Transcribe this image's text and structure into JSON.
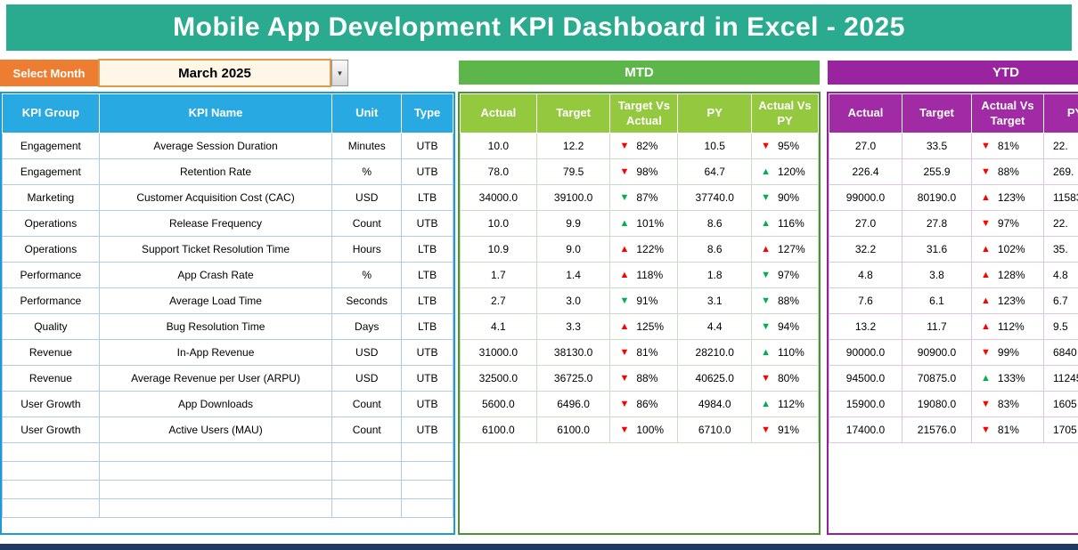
{
  "title": "Mobile App Development KPI Dashboard in Excel - 2025",
  "month_selector": {
    "label": "Select Month",
    "value": "March 2025"
  },
  "icons": {
    "dropdown_arrow": "▼",
    "trend_up": "▲",
    "trend_down": "▼"
  },
  "sections": {
    "mtd": "MTD",
    "ytd": "YTD"
  },
  "columns": {
    "left": [
      "KPI Group",
      "KPI Name",
      "Unit",
      "Type"
    ],
    "mtd": [
      "Actual",
      "Target",
      "Target Vs Actual",
      "PY",
      "Actual Vs PY"
    ],
    "ytd": [
      "Actual",
      "Target",
      "Actual Vs Target",
      "PY"
    ]
  },
  "colors": {
    "banner": "#2aab8f",
    "orange": "#ED7D31",
    "blue_header": "#29A9E1",
    "mtd_bar": "#5CB649",
    "mtd_subheader": "#94C83F",
    "ytd_bar": "#9A23A0",
    "ytd_subheader": "#A12BA5",
    "trend_good": "#00B050",
    "trend_bad": "#FF0000",
    "footer": "#1F3864"
  },
  "rows": [
    {
      "group": "Engagement",
      "name": "Average Session Duration",
      "unit": "Minutes",
      "type": "UTB",
      "mtd": {
        "actual": "10.0",
        "target": "12.2",
        "tva": {
          "arrow": "down",
          "good": false,
          "pct": "82%"
        },
        "py": "10.5",
        "avp": {
          "arrow": "down",
          "good": false,
          "pct": "95%"
        }
      },
      "ytd": {
        "actual": "27.0",
        "target": "33.5",
        "avt": {
          "arrow": "down",
          "good": false,
          "pct": "81%"
        },
        "py": "22."
      }
    },
    {
      "group": "Engagement",
      "name": "Retention Rate",
      "unit": "%",
      "type": "UTB",
      "mtd": {
        "actual": "78.0",
        "target": "79.5",
        "tva": {
          "arrow": "down",
          "good": false,
          "pct": "98%"
        },
        "py": "64.7",
        "avp": {
          "arrow": "up",
          "good": true,
          "pct": "120%"
        }
      },
      "ytd": {
        "actual": "226.4",
        "target": "255.9",
        "avt": {
          "arrow": "down",
          "good": false,
          "pct": "88%"
        },
        "py": "269."
      }
    },
    {
      "group": "Marketing",
      "name": "Customer Acquisition Cost (CAC)",
      "unit": "USD",
      "type": "LTB",
      "mtd": {
        "actual": "34000.0",
        "target": "39100.0",
        "tva": {
          "arrow": "down",
          "good": true,
          "pct": "87%"
        },
        "py": "37740.0",
        "avp": {
          "arrow": "down",
          "good": true,
          "pct": "90%"
        }
      },
      "ytd": {
        "actual": "99000.0",
        "target": "80190.0",
        "avt": {
          "arrow": "up",
          "good": false,
          "pct": "123%"
        },
        "py": "11583"
      }
    },
    {
      "group": "Operations",
      "name": "Release Frequency",
      "unit": "Count",
      "type": "UTB",
      "mtd": {
        "actual": "10.0",
        "target": "9.9",
        "tva": {
          "arrow": "up",
          "good": true,
          "pct": "101%"
        },
        "py": "8.6",
        "avp": {
          "arrow": "up",
          "good": true,
          "pct": "116%"
        }
      },
      "ytd": {
        "actual": "27.0",
        "target": "27.8",
        "avt": {
          "arrow": "down",
          "good": false,
          "pct": "97%"
        },
        "py": "22."
      }
    },
    {
      "group": "Operations",
      "name": "Support Ticket Resolution Time",
      "unit": "Hours",
      "type": "LTB",
      "mtd": {
        "actual": "10.9",
        "target": "9.0",
        "tva": {
          "arrow": "up",
          "good": false,
          "pct": "122%"
        },
        "py": "8.6",
        "avp": {
          "arrow": "up",
          "good": false,
          "pct": "127%"
        }
      },
      "ytd": {
        "actual": "32.2",
        "target": "31.6",
        "avt": {
          "arrow": "up",
          "good": false,
          "pct": "102%"
        },
        "py": "35."
      }
    },
    {
      "group": "Performance",
      "name": "App Crash Rate",
      "unit": "%",
      "type": "LTB",
      "mtd": {
        "actual": "1.7",
        "target": "1.4",
        "tva": {
          "arrow": "up",
          "good": false,
          "pct": "118%"
        },
        "py": "1.8",
        "avp": {
          "arrow": "down",
          "good": true,
          "pct": "97%"
        }
      },
      "ytd": {
        "actual": "4.8",
        "target": "3.8",
        "avt": {
          "arrow": "up",
          "good": false,
          "pct": "128%"
        },
        "py": "4.8"
      }
    },
    {
      "group": "Performance",
      "name": "Average Load Time",
      "unit": "Seconds",
      "type": "LTB",
      "mtd": {
        "actual": "2.7",
        "target": "3.0",
        "tva": {
          "arrow": "down",
          "good": true,
          "pct": "91%"
        },
        "py": "3.1",
        "avp": {
          "arrow": "down",
          "good": true,
          "pct": "88%"
        }
      },
      "ytd": {
        "actual": "7.6",
        "target": "6.1",
        "avt": {
          "arrow": "up",
          "good": false,
          "pct": "123%"
        },
        "py": "6.7"
      }
    },
    {
      "group": "Quality",
      "name": "Bug Resolution Time",
      "unit": "Days",
      "type": "LTB",
      "mtd": {
        "actual": "4.1",
        "target": "3.3",
        "tva": {
          "arrow": "up",
          "good": false,
          "pct": "125%"
        },
        "py": "4.4",
        "avp": {
          "arrow": "down",
          "good": true,
          "pct": "94%"
        }
      },
      "ytd": {
        "actual": "13.2",
        "target": "11.7",
        "avt": {
          "arrow": "up",
          "good": false,
          "pct": "112%"
        },
        "py": "9.5"
      }
    },
    {
      "group": "Revenue",
      "name": "In-App Revenue",
      "unit": "USD",
      "type": "UTB",
      "mtd": {
        "actual": "31000.0",
        "target": "38130.0",
        "tva": {
          "arrow": "down",
          "good": false,
          "pct": "81%"
        },
        "py": "28210.0",
        "avp": {
          "arrow": "up",
          "good": true,
          "pct": "110%"
        }
      },
      "ytd": {
        "actual": "90000.0",
        "target": "90900.0",
        "avt": {
          "arrow": "down",
          "good": false,
          "pct": "99%"
        },
        "py": "6840"
      }
    },
    {
      "group": "Revenue",
      "name": "Average Revenue per User (ARPU)",
      "unit": "USD",
      "type": "UTB",
      "mtd": {
        "actual": "32500.0",
        "target": "36725.0",
        "tva": {
          "arrow": "down",
          "good": false,
          "pct": "88%"
        },
        "py": "40625.0",
        "avp": {
          "arrow": "down",
          "good": false,
          "pct": "80%"
        }
      },
      "ytd": {
        "actual": "94500.0",
        "target": "70875.0",
        "avt": {
          "arrow": "up",
          "good": true,
          "pct": "133%"
        },
        "py": "11245"
      }
    },
    {
      "group": "User Growth",
      "name": "App Downloads",
      "unit": "Count",
      "type": "UTB",
      "mtd": {
        "actual": "5600.0",
        "target": "6496.0",
        "tva": {
          "arrow": "down",
          "good": false,
          "pct": "86%"
        },
        "py": "4984.0",
        "avp": {
          "arrow": "up",
          "good": true,
          "pct": "112%"
        }
      },
      "ytd": {
        "actual": "15900.0",
        "target": "19080.0",
        "avt": {
          "arrow": "down",
          "good": false,
          "pct": "83%"
        },
        "py": "1605"
      }
    },
    {
      "group": "User Growth",
      "name": "Active Users (MAU)",
      "unit": "Count",
      "type": "UTB",
      "mtd": {
        "actual": "6100.0",
        "target": "6100.0",
        "tva": {
          "arrow": "down",
          "good": false,
          "pct": "100%"
        },
        "py": "6710.0",
        "avp": {
          "arrow": "down",
          "good": false,
          "pct": "91%"
        }
      },
      "ytd": {
        "actual": "17400.0",
        "target": "21576.0",
        "avt": {
          "arrow": "down",
          "good": false,
          "pct": "81%"
        },
        "py": "1705"
      }
    }
  ]
}
